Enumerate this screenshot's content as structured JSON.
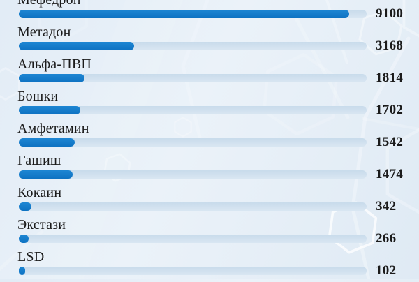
{
  "chart_data": {
    "type": "bar",
    "orientation": "horizontal",
    "title": "",
    "xlabel": "",
    "ylabel": "",
    "categories": [
      "Мефедрон",
      "Метадон",
      "Альфа-ПВП",
      "Бошки",
      "Амфетамин",
      "Гашиш",
      "Кокаин",
      "Экстази",
      "LSD"
    ],
    "values": [
      9100,
      3168,
      1814,
      1702,
      1542,
      1474,
      342,
      266,
      102
    ],
    "value_labels": [
      "9100",
      "3168",
      "1814",
      "1702",
      "1542",
      "1474",
      "342",
      "266",
      "102"
    ],
    "xlim": [
      0,
      9580
    ],
    "grid": false,
    "legend": false,
    "value_label_position": "right-of-track",
    "first_row_label_clipped_at_top": true
  },
  "style": {
    "bar_fill_top": "#1e86d3",
    "bar_fill_bottom": "#0e72c2",
    "bar_track_top": "#c8dbeb",
    "bar_track_bottom": "#d9e6f2",
    "text_color": "#1b1b1b",
    "background_a": "#e2ecf6",
    "background_b": "#ebf2f9",
    "background_c": "#dfeaf4",
    "pattern_color": "#ffffff"
  }
}
